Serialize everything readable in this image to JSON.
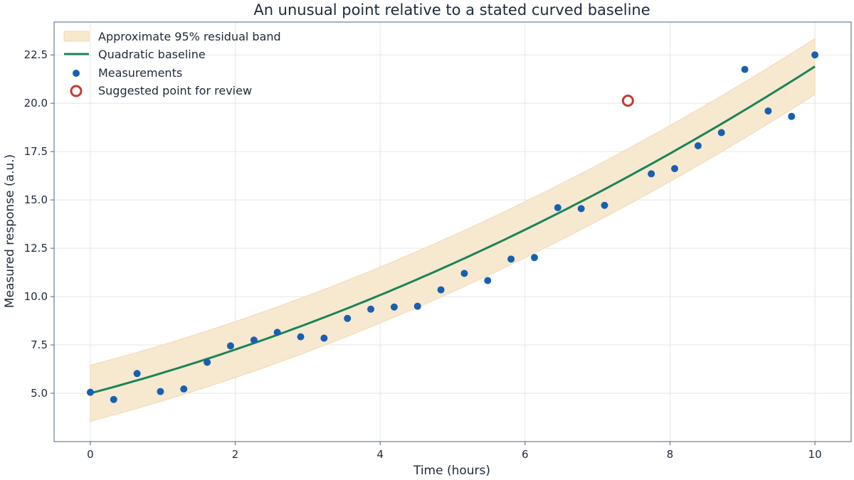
{
  "chart_data": {
    "type": "scatter",
    "title": "An unusual point relative to a stated curved baseline",
    "xlabel": "Time (hours)",
    "ylabel": "Measured response (a.u.)",
    "xlim": [
      -0.5,
      10.5
    ],
    "ylim": [
      2.5,
      24.2
    ],
    "xticks": [
      0,
      2,
      4,
      6,
      8,
      10
    ],
    "yticks": [
      5.0,
      7.5,
      10.0,
      12.5,
      15.0,
      17.5,
      20.0,
      22.5
    ],
    "xtick_labels": [
      "0",
      "2",
      "4",
      "6",
      "8",
      "10"
    ],
    "ytick_labels": [
      "5.0",
      "7.5",
      "10.0",
      "12.5",
      "15.0",
      "17.5",
      "20.0",
      "22.5"
    ],
    "grid": true,
    "legend_position": "upper-left",
    "baseline": {
      "type": "quadratic",
      "a": 0.07,
      "b": 0.99,
      "c": 5.0
    },
    "band_halfwidth": 1.45,
    "measurements": {
      "x": [
        0,
        0.3226,
        0.6452,
        0.9677,
        1.2903,
        1.6129,
        1.9355,
        2.2581,
        2.5806,
        2.9032,
        3.2258,
        3.5484,
        3.871,
        4.1935,
        4.5161,
        4.8387,
        5.1613,
        5.4839,
        5.8065,
        6.129,
        6.4516,
        6.7742,
        7.0968,
        7.7419,
        8.0645,
        8.3871,
        8.7097,
        9.0323,
        9.3548,
        9.6774,
        10
      ],
      "y": [
        5.05,
        4.68,
        6.02,
        5.09,
        5.22,
        6.6,
        7.45,
        7.75,
        8.15,
        7.92,
        7.85,
        8.87,
        9.35,
        9.46,
        9.5,
        10.35,
        11.2,
        10.83,
        11.94,
        12.02,
        14.6,
        14.55,
        14.72,
        16.35,
        16.62,
        17.8,
        18.48,
        21.75,
        19.6,
        19.32,
        22.5
      ]
    },
    "suggested_point": {
      "x": 7.4194,
      "y": 20.13
    },
    "colors": {
      "band": "#f7e8d0",
      "band_edge": "#f3d9b0",
      "baseline": "#1b8457",
      "measurements": "#1760b0",
      "suggested": "#c23b30",
      "axes": "#4d6480"
    },
    "legend": [
      {
        "label": "Approximate 95% residual band",
        "marker": "band"
      },
      {
        "label": "Quadratic baseline",
        "marker": "line"
      },
      {
        "label": "Measurements",
        "marker": "dot"
      },
      {
        "label": "Suggested point for review",
        "marker": "ring"
      }
    ]
  }
}
